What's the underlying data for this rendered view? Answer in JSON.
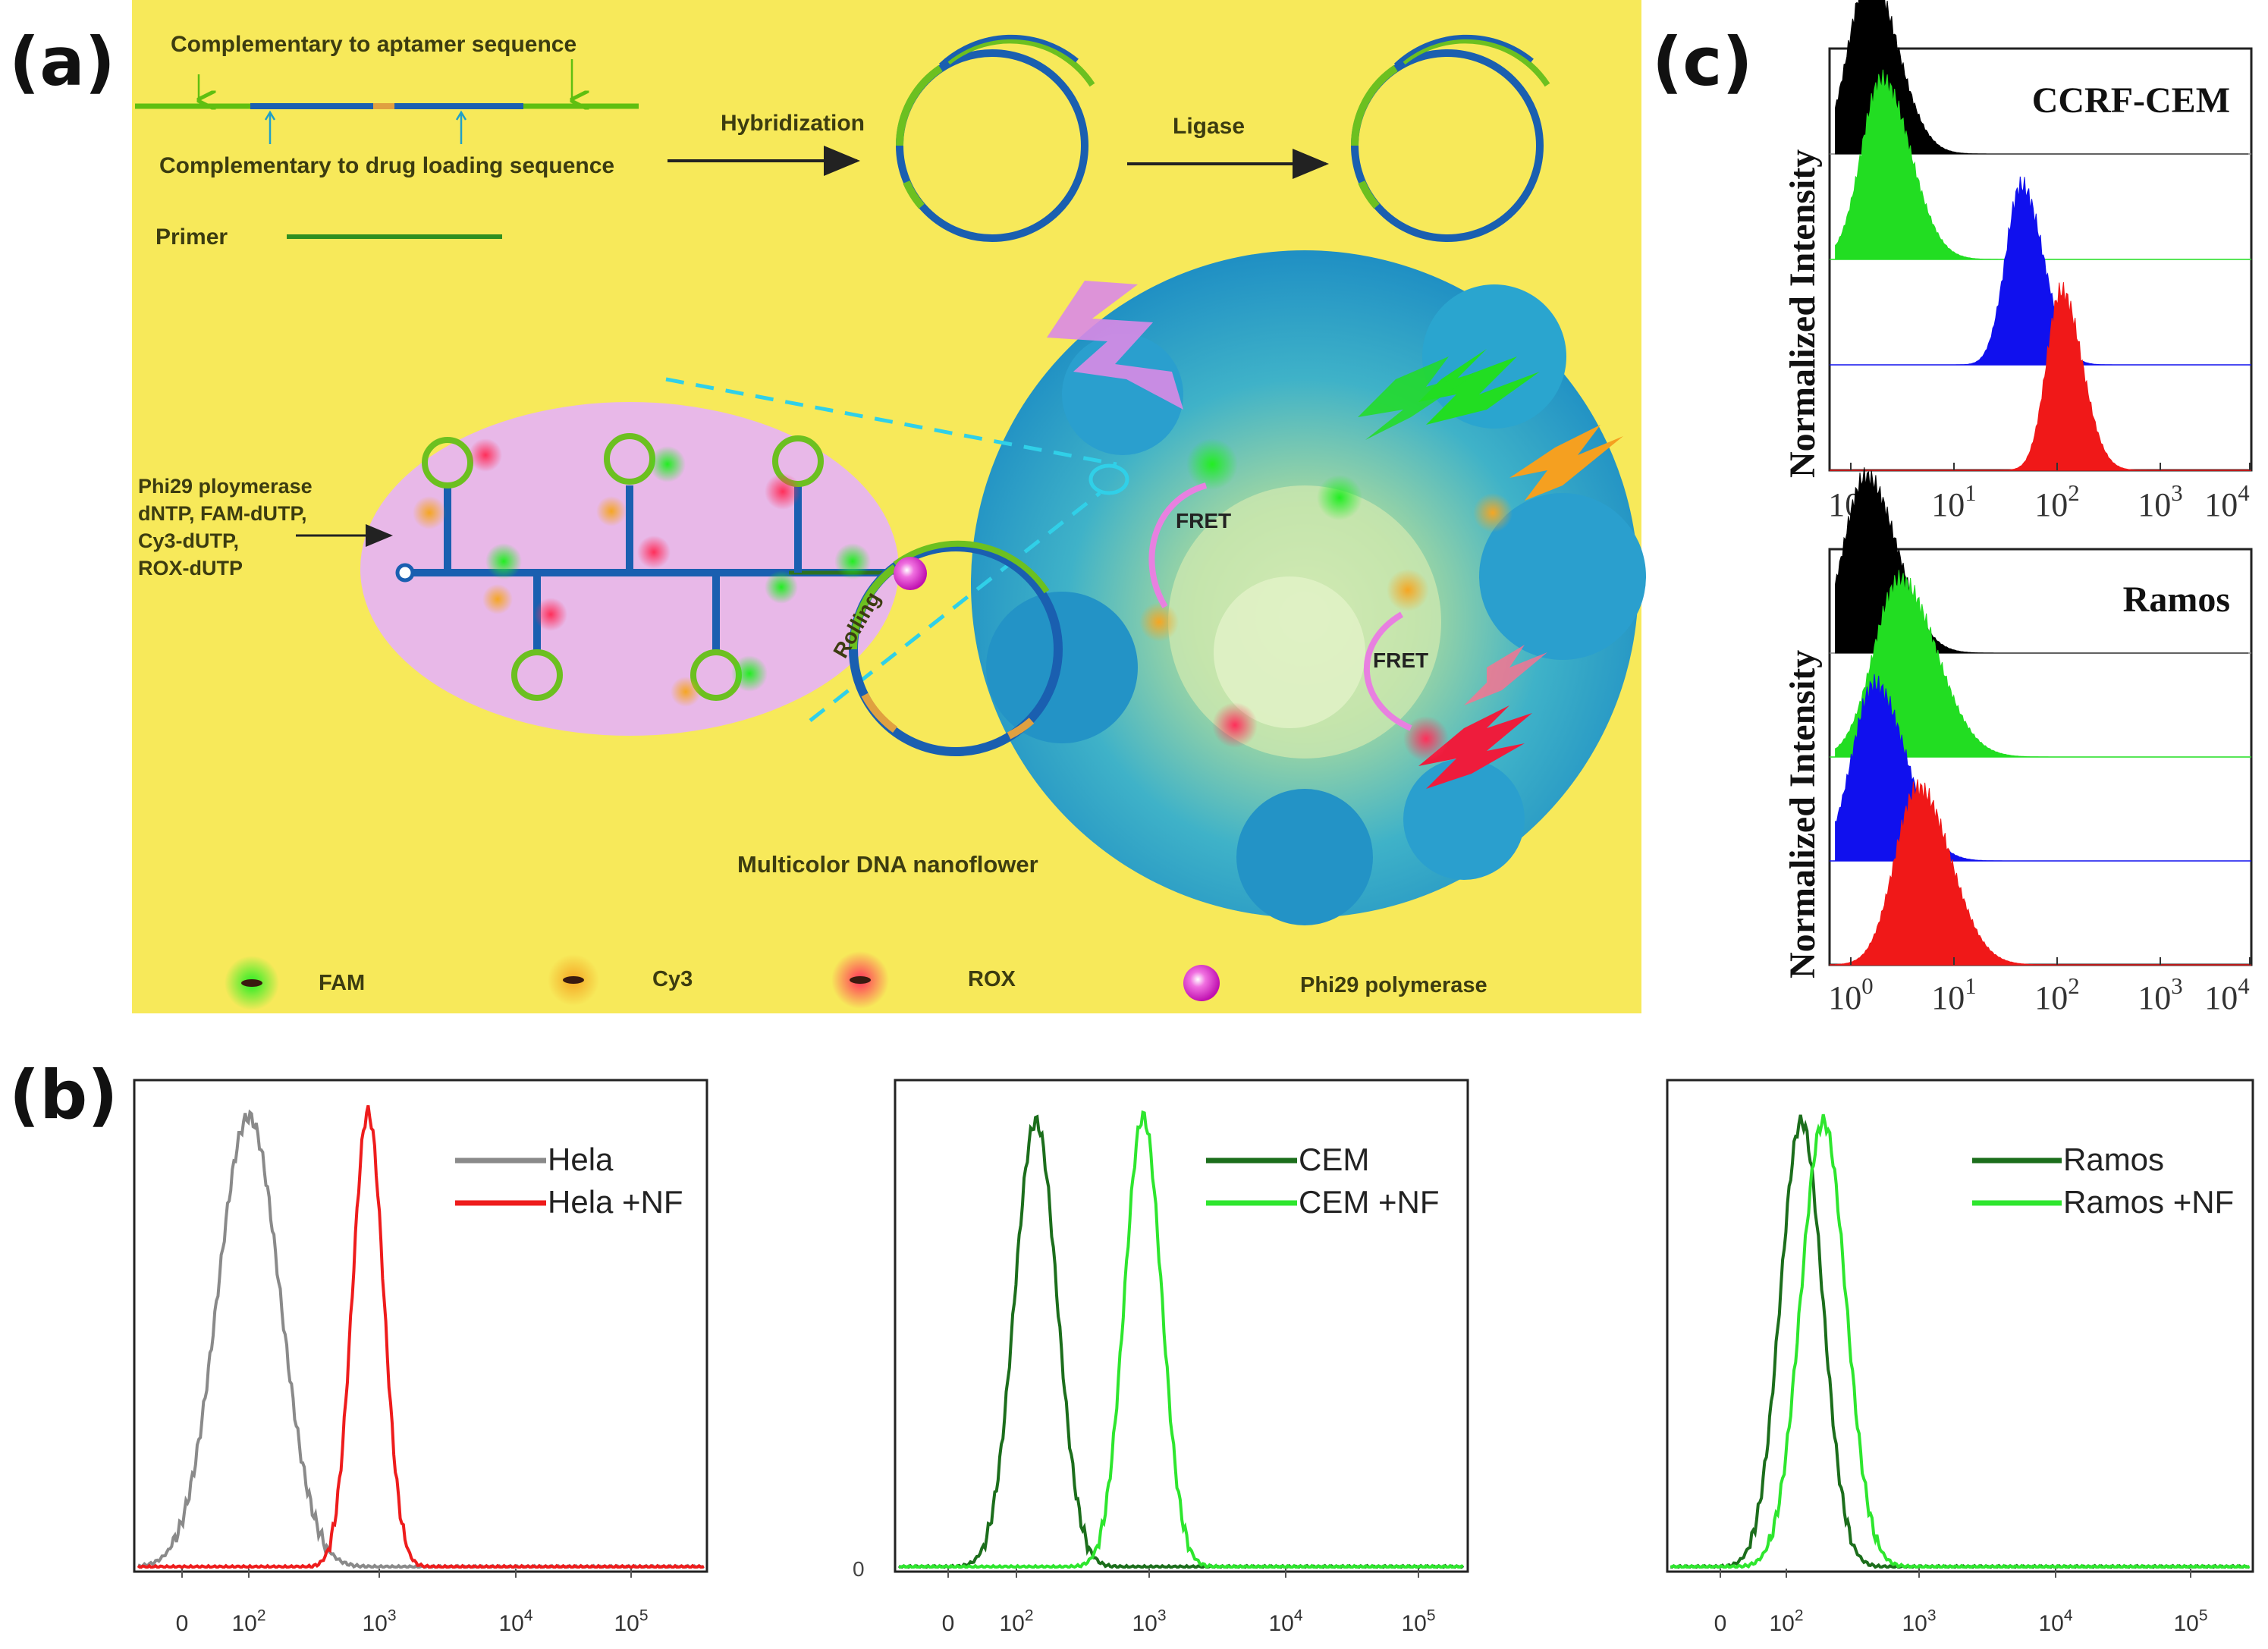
{
  "panels": {
    "a": "(a)",
    "b": "(b)",
    "c": "(c)"
  },
  "schematic": {
    "label_aptamer": "Complementary to aptamer sequence",
    "label_drug": "Complementary to drug loading sequence",
    "label_primer": "Primer",
    "label_hybridization": "Hybridization",
    "label_ligase": "Ligase",
    "label_rolling": "Rolling",
    "label_fret_1": "FRET",
    "label_fret_2": "FRET",
    "label_nanoflower": "Multicolor DNA nanoflower",
    "reagents": [
      "Phi29 ploymerase",
      "dNTP, FAM-dUTP,",
      "Cy3-dUTP,",
      "ROX-dUTP"
    ],
    "legend": [
      {
        "label": "FAM",
        "color": "#22dd22"
      },
      {
        "label": "Cy3",
        "color": "#f0a020"
      },
      {
        "label": "ROX",
        "color": "#f03050"
      },
      {
        "label": "Phi29 polymerase",
        "color": "#e020c0"
      }
    ],
    "colors": {
      "background": "#f7e95a",
      "oval": "#e8b8e8",
      "flower": "#2aa8d0",
      "strand_green": "#6cc020",
      "strand_blue": "#1a5fb0"
    }
  },
  "chart_data": [
    {
      "id": "b1",
      "type": "line",
      "ylabel": "",
      "xlabel": "",
      "x_scale": "log",
      "x_ticks": [
        "0",
        "10^2",
        "10^3",
        "10^4",
        "10^5"
      ],
      "legend": [
        "Hela",
        "Hela +NF"
      ],
      "series": [
        {
          "name": "Hela",
          "color": "#8a8a8a",
          "peak_x": 100,
          "peak_y": 0.98,
          "width": 0.24
        },
        {
          "name": "Hela +NF",
          "color": "#ee1c1c",
          "peak_x": 820,
          "peak_y": 0.99,
          "width": 0.12
        }
      ]
    },
    {
      "id": "b2",
      "type": "line",
      "ylabel": "0",
      "xlabel": "",
      "x_scale": "log",
      "x_ticks": [
        "0",
        "10^2",
        "10^3",
        "10^4",
        "10^5"
      ],
      "legend": [
        "CEM",
        "CEM +NF"
      ],
      "series": [
        {
          "name": "CEM",
          "color": "#1c6e1c",
          "peak_x": 140,
          "peak_y": 0.97,
          "width": 0.16
        },
        {
          "name": "CEM +NF",
          "color": "#2ee62e",
          "peak_x": 900,
          "peak_y": 0.98,
          "width": 0.14
        }
      ]
    },
    {
      "id": "b3",
      "type": "line",
      "ylabel": "",
      "xlabel": "",
      "x_scale": "log",
      "x_ticks": [
        "0",
        "10^2",
        "10^3",
        "10^4",
        "10^5"
      ],
      "legend": [
        "Ramos",
        "Ramos +NF"
      ],
      "series": [
        {
          "name": "Ramos",
          "color": "#1c6e1c",
          "peak_x": 130,
          "peak_y": 0.97,
          "width": 0.16
        },
        {
          "name": "Ramos +NF",
          "color": "#2ee62e",
          "peak_x": 190,
          "peak_y": 0.97,
          "width": 0.17
        }
      ]
    },
    {
      "id": "c1",
      "type": "area",
      "title": "CCRF-CEM",
      "ylabel": "Normalized Intensity",
      "x_scale": "log",
      "x_ticks": [
        "10^0",
        "10^1",
        "10^2",
        "10^3",
        "10^4"
      ],
      "series": [
        {
          "name": "black",
          "color": "#000000",
          "peak_x": 1.5,
          "width": 0.22
        },
        {
          "name": "green",
          "color": "#22dd22",
          "peak_x": 2.0,
          "width": 0.22
        },
        {
          "name": "blue",
          "color": "#1010ee",
          "peak_x": 45,
          "width": 0.17
        },
        {
          "name": "red",
          "color": "#f01818",
          "peak_x": 110,
          "width": 0.16
        }
      ]
    },
    {
      "id": "c2",
      "type": "area",
      "title": "Ramos",
      "ylabel": "Normalized Intensity",
      "x_scale": "log",
      "x_ticks": [
        "10^0",
        "10^1",
        "10^2",
        "10^3",
        "10^4"
      ],
      "series": [
        {
          "name": "black",
          "color": "#000000",
          "peak_x": 1.4,
          "width": 0.24
        },
        {
          "name": "green",
          "color": "#22dd22",
          "peak_x": 3.0,
          "width": 0.28
        },
        {
          "name": "blue",
          "color": "#1010ee",
          "peak_x": 1.7,
          "width": 0.24
        },
        {
          "name": "red",
          "color": "#f01818",
          "peak_x": 4.5,
          "width": 0.25
        }
      ]
    }
  ]
}
